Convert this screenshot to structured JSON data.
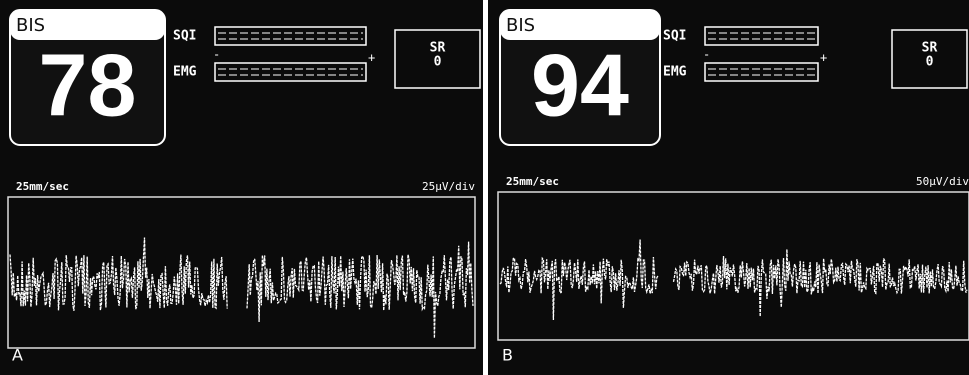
{
  "panels": [
    {
      "label": "A",
      "bis_label": "BIS",
      "bis_value": 78,
      "sqi_label": "SQI",
      "emg_label": "EMG",
      "minus": "-",
      "plus": "+",
      "sr_label": "SR",
      "sr_value": 0,
      "sweep_speed": "25mm/sec",
      "scale": "25μV/div"
    },
    {
      "label": "B",
      "bis_label": "BIS",
      "bis_value": 94,
      "sqi_label": "SQI",
      "emg_label": "EMG",
      "minus": "-",
      "plus": "+",
      "sr_label": "SR",
      "sr_value": 0,
      "sweep_speed": "25mm/sec",
      "scale": "50μV/div"
    }
  ]
}
